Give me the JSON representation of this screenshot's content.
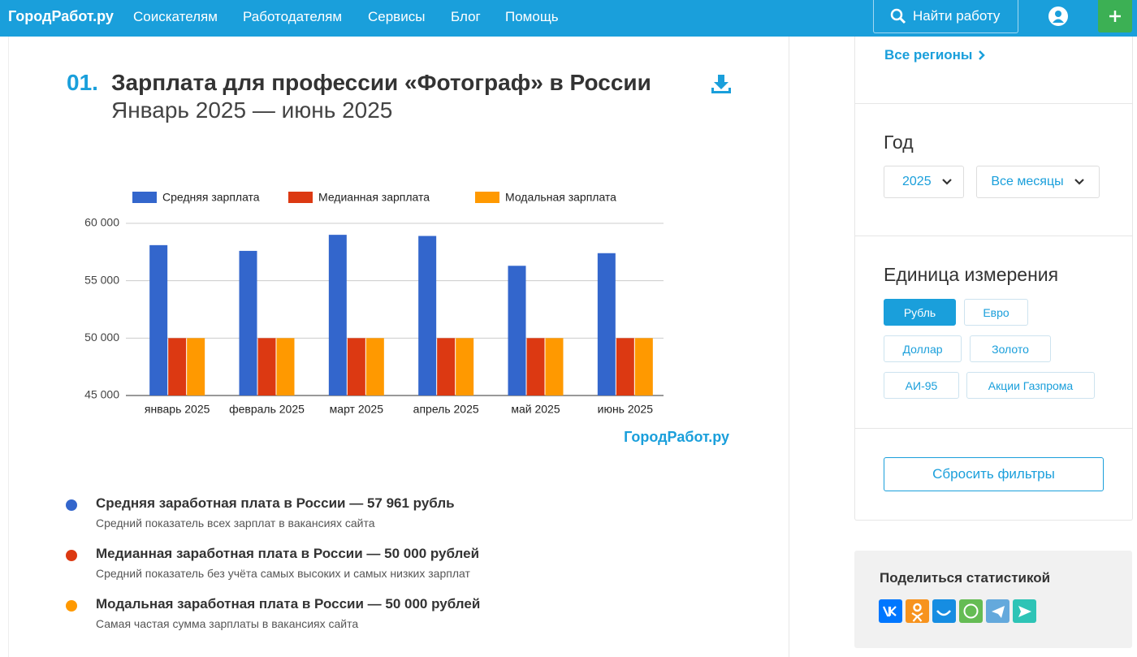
{
  "nav": {
    "logo": "ГородРабот.ру",
    "links": [
      "Соискателям",
      "Работодателям",
      "Сервисы",
      "Блог",
      "Помощь"
    ],
    "search": "Найти работу"
  },
  "header": {
    "number": "01.",
    "title": "Зарплата для профессии «Фотограф» в России",
    "subtitle": "Январь 2025 — июнь 2025"
  },
  "chart_data": {
    "type": "bar",
    "categories": [
      "январь 2025",
      "февраль 2025",
      "март 2025",
      "апрель 2025",
      "май 2025",
      "июнь 2025"
    ],
    "series": [
      {
        "name": "Средняя зарплата",
        "color": "#3366cc",
        "values": [
          58100,
          57600,
          59000,
          58900,
          56300,
          57400
        ]
      },
      {
        "name": "Медианная зарплата",
        "color": "#dc3912",
        "values": [
          50000,
          50000,
          50000,
          50000,
          50000,
          50000
        ]
      },
      {
        "name": "Модальная зарплата",
        "color": "#ff9900",
        "values": [
          50000,
          50000,
          50000,
          50000,
          50000,
          50000
        ]
      }
    ],
    "ylim": [
      45000,
      60000
    ],
    "yticks": [
      {
        "value": 45000,
        "label": "45 000"
      },
      {
        "value": 50000,
        "label": "50 000"
      },
      {
        "value": 55000,
        "label": "55 000"
      },
      {
        "value": 60000,
        "label": "60 000"
      }
    ],
    "grid": true,
    "legend": "top",
    "watermark": "ГородРабот.ру"
  },
  "summary": [
    {
      "title": "Средняя заработная плата в России — 57 961 рубль",
      "desc": "Средний показатель всех зарплат в вакансиях сайта"
    },
    {
      "title": "Медианная заработная плата в России — 50 000 рублей",
      "desc": "Средний показатель без учёта самых высоких и самых низких зарплат"
    },
    {
      "title": "Модальная заработная плата в России — 50 000 рублей",
      "desc": "Самая частая сумма зарплаты в вакансиях сайта"
    }
  ],
  "sidebar": {
    "regions": "Все регионы",
    "year_label": "Год",
    "year": "2025",
    "months": "Все месяцы",
    "unit_label": "Единица измерения",
    "units": [
      "Рубль",
      "Евро",
      "Доллар",
      "Золото",
      "АИ-95",
      "Акции Газпрома"
    ],
    "reset": "Сбросить фильтры",
    "share": "Поделиться статистикой"
  }
}
